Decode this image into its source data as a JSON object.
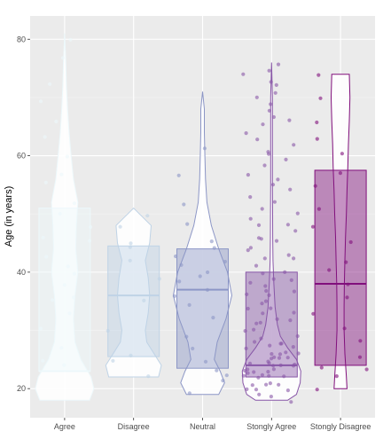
{
  "chart_data": {
    "type": "violin-box-jitter",
    "title": "",
    "xlabel": "",
    "ylabel": "Age (in years)",
    "ylim": [
      15,
      84
    ],
    "yticks": [
      20,
      40,
      60,
      80
    ],
    "grid": true,
    "legend": "none",
    "categories": [
      "Agree",
      "Disagree",
      "Neutral",
      "Stongly Agree",
      "Stongly Disagree"
    ],
    "colors": {
      "Agree": "#edf8fb",
      "Disagree": "#bfd3e6",
      "Neutral": "#8c96c6",
      "Stongly Agree": "#8856a7",
      "Stongly Disagree": "#810f7c"
    },
    "boxes": [
      {
        "group": "Agree",
        "q1": 23,
        "median": 23,
        "q3": 51
      },
      {
        "group": "Disagree",
        "q1": 25.5,
        "median": 36,
        "q3": 44.5
      },
      {
        "group": "Neutral",
        "q1": 23.5,
        "median": 37,
        "q3": 44
      },
      {
        "group": "Stongly Agree",
        "q1": 22,
        "median": 24,
        "q3": 40
      },
      {
        "group": "Stongly Disagree",
        "q1": 24,
        "median": 38,
        "q3": 57.5
      }
    ],
    "violins": [
      {
        "group": "Agree",
        "min": 18,
        "max": 81,
        "profile": [
          [
            18,
            0.85
          ],
          [
            20,
            1
          ],
          [
            22,
            0.9
          ],
          [
            25,
            0.55
          ],
          [
            28,
            0.35
          ],
          [
            32,
            0.3
          ],
          [
            36,
            0.35
          ],
          [
            40,
            0.45
          ],
          [
            44,
            0.38
          ],
          [
            48,
            0.4
          ],
          [
            52,
            0.45
          ],
          [
            56,
            0.3
          ],
          [
            60,
            0.22
          ],
          [
            64,
            0.15
          ],
          [
            68,
            0.1
          ],
          [
            72,
            0.06
          ],
          [
            76,
            0.04
          ],
          [
            81,
            0
          ]
        ]
      },
      {
        "group": "Disagree",
        "min": 22,
        "max": 51,
        "profile": [
          [
            22,
            0.85
          ],
          [
            24,
            0.95
          ],
          [
            26,
            0.7
          ],
          [
            28,
            0.45
          ],
          [
            30,
            0.4
          ],
          [
            33,
            0.5
          ],
          [
            36,
            0.55
          ],
          [
            39,
            0.5
          ],
          [
            42,
            0.4
          ],
          [
            45,
            0.55
          ],
          [
            48,
            0.6
          ],
          [
            51,
            0
          ]
        ]
      },
      {
        "group": "Neutral",
        "min": 19,
        "max": 71,
        "profile": [
          [
            19,
            0.55
          ],
          [
            21,
            0.75
          ],
          [
            23,
            0.6
          ],
          [
            25,
            0.4
          ],
          [
            28,
            0.5
          ],
          [
            32,
            0.8
          ],
          [
            36,
            1
          ],
          [
            40,
            0.85
          ],
          [
            44,
            0.55
          ],
          [
            48,
            0.3
          ],
          [
            52,
            0.15
          ],
          [
            56,
            0.1
          ],
          [
            60,
            0.08
          ],
          [
            64,
            0.06
          ],
          [
            68,
            0.06
          ],
          [
            71,
            0
          ]
        ]
      },
      {
        "group": "Stongly Agree",
        "min": 18,
        "max": 76,
        "profile": [
          [
            18,
            0.55
          ],
          [
            19,
            0.85
          ],
          [
            21,
            0.98
          ],
          [
            23,
            1
          ],
          [
            25,
            0.85
          ],
          [
            27,
            0.55
          ],
          [
            29,
            0.3
          ],
          [
            31,
            0.2
          ],
          [
            34,
            0.12
          ],
          [
            38,
            0.08
          ],
          [
            42,
            0.05
          ],
          [
            46,
            0.04
          ],
          [
            50,
            0.035
          ],
          [
            55,
            0.03
          ],
          [
            60,
            0.03
          ],
          [
            65,
            0.03
          ],
          [
            70,
            0.03
          ],
          [
            76,
            0
          ]
        ]
      },
      {
        "group": "Stongly Disagree",
        "min": 20,
        "max": 74,
        "profile": [
          [
            20,
            0.22
          ],
          [
            22,
            0.2
          ],
          [
            26,
            0.15
          ],
          [
            30,
            0.12
          ],
          [
            34,
            0.12
          ],
          [
            38,
            0.13
          ],
          [
            42,
            0.15
          ],
          [
            46,
            0.17
          ],
          [
            50,
            0.2
          ],
          [
            54,
            0.22
          ],
          [
            58,
            0.25
          ],
          [
            62,
            0.27
          ],
          [
            66,
            0.3
          ],
          [
            70,
            0.32
          ],
          [
            74,
            0.3
          ]
        ]
      }
    ],
    "points": {
      "Agree": [
        24,
        25,
        27,
        30,
        33,
        35,
        36,
        38,
        40,
        41,
        43,
        45,
        46,
        48,
        50,
        52,
        55,
        57,
        60,
        63,
        66,
        69,
        72,
        77,
        80
      ],
      "Disagree": [
        22,
        25,
        26,
        30,
        35,
        39,
        42,
        44,
        45,
        48,
        50
      ],
      "Neutral": [
        19,
        21,
        22,
        23,
        25,
        27,
        29,
        32,
        34,
        36,
        37,
        38,
        39,
        40,
        41,
        42,
        43,
        44,
        45,
        48,
        52,
        57,
        61
      ],
      "Stongly Agree": [
        18,
        19,
        19,
        20,
        20,
        20,
        21,
        21,
        21,
        21,
        22,
        22,
        22,
        22,
        22,
        23,
        23,
        23,
        23,
        23,
        23,
        24,
        24,
        24,
        24,
        24,
        24,
        25,
        25,
        25,
        25,
        25,
        26,
        26,
        26,
        26,
        27,
        27,
        27,
        28,
        28,
        28,
        29,
        29,
        30,
        30,
        31,
        31,
        32,
        32,
        33,
        33,
        34,
        34,
        35,
        35,
        36,
        36,
        37,
        37,
        38,
        38,
        39,
        39,
        40,
        40,
        41,
        42,
        42,
        43,
        44,
        44,
        45,
        46,
        46,
        47,
        48,
        48,
        49,
        50,
        51,
        52,
        53,
        54,
        55,
        56,
        57,
        58,
        59,
        60,
        61,
        62,
        63,
        64,
        65,
        66,
        67,
        68,
        69,
        70,
        71,
        72,
        73,
        74,
        75,
        76
      ],
      "Stongly Disagree": [
        20,
        22,
        23,
        24,
        25,
        28,
        30,
        33,
        36,
        38,
        40,
        42,
        45,
        48,
        51,
        55,
        57,
        60,
        63,
        66,
        70,
        74
      ]
    }
  }
}
